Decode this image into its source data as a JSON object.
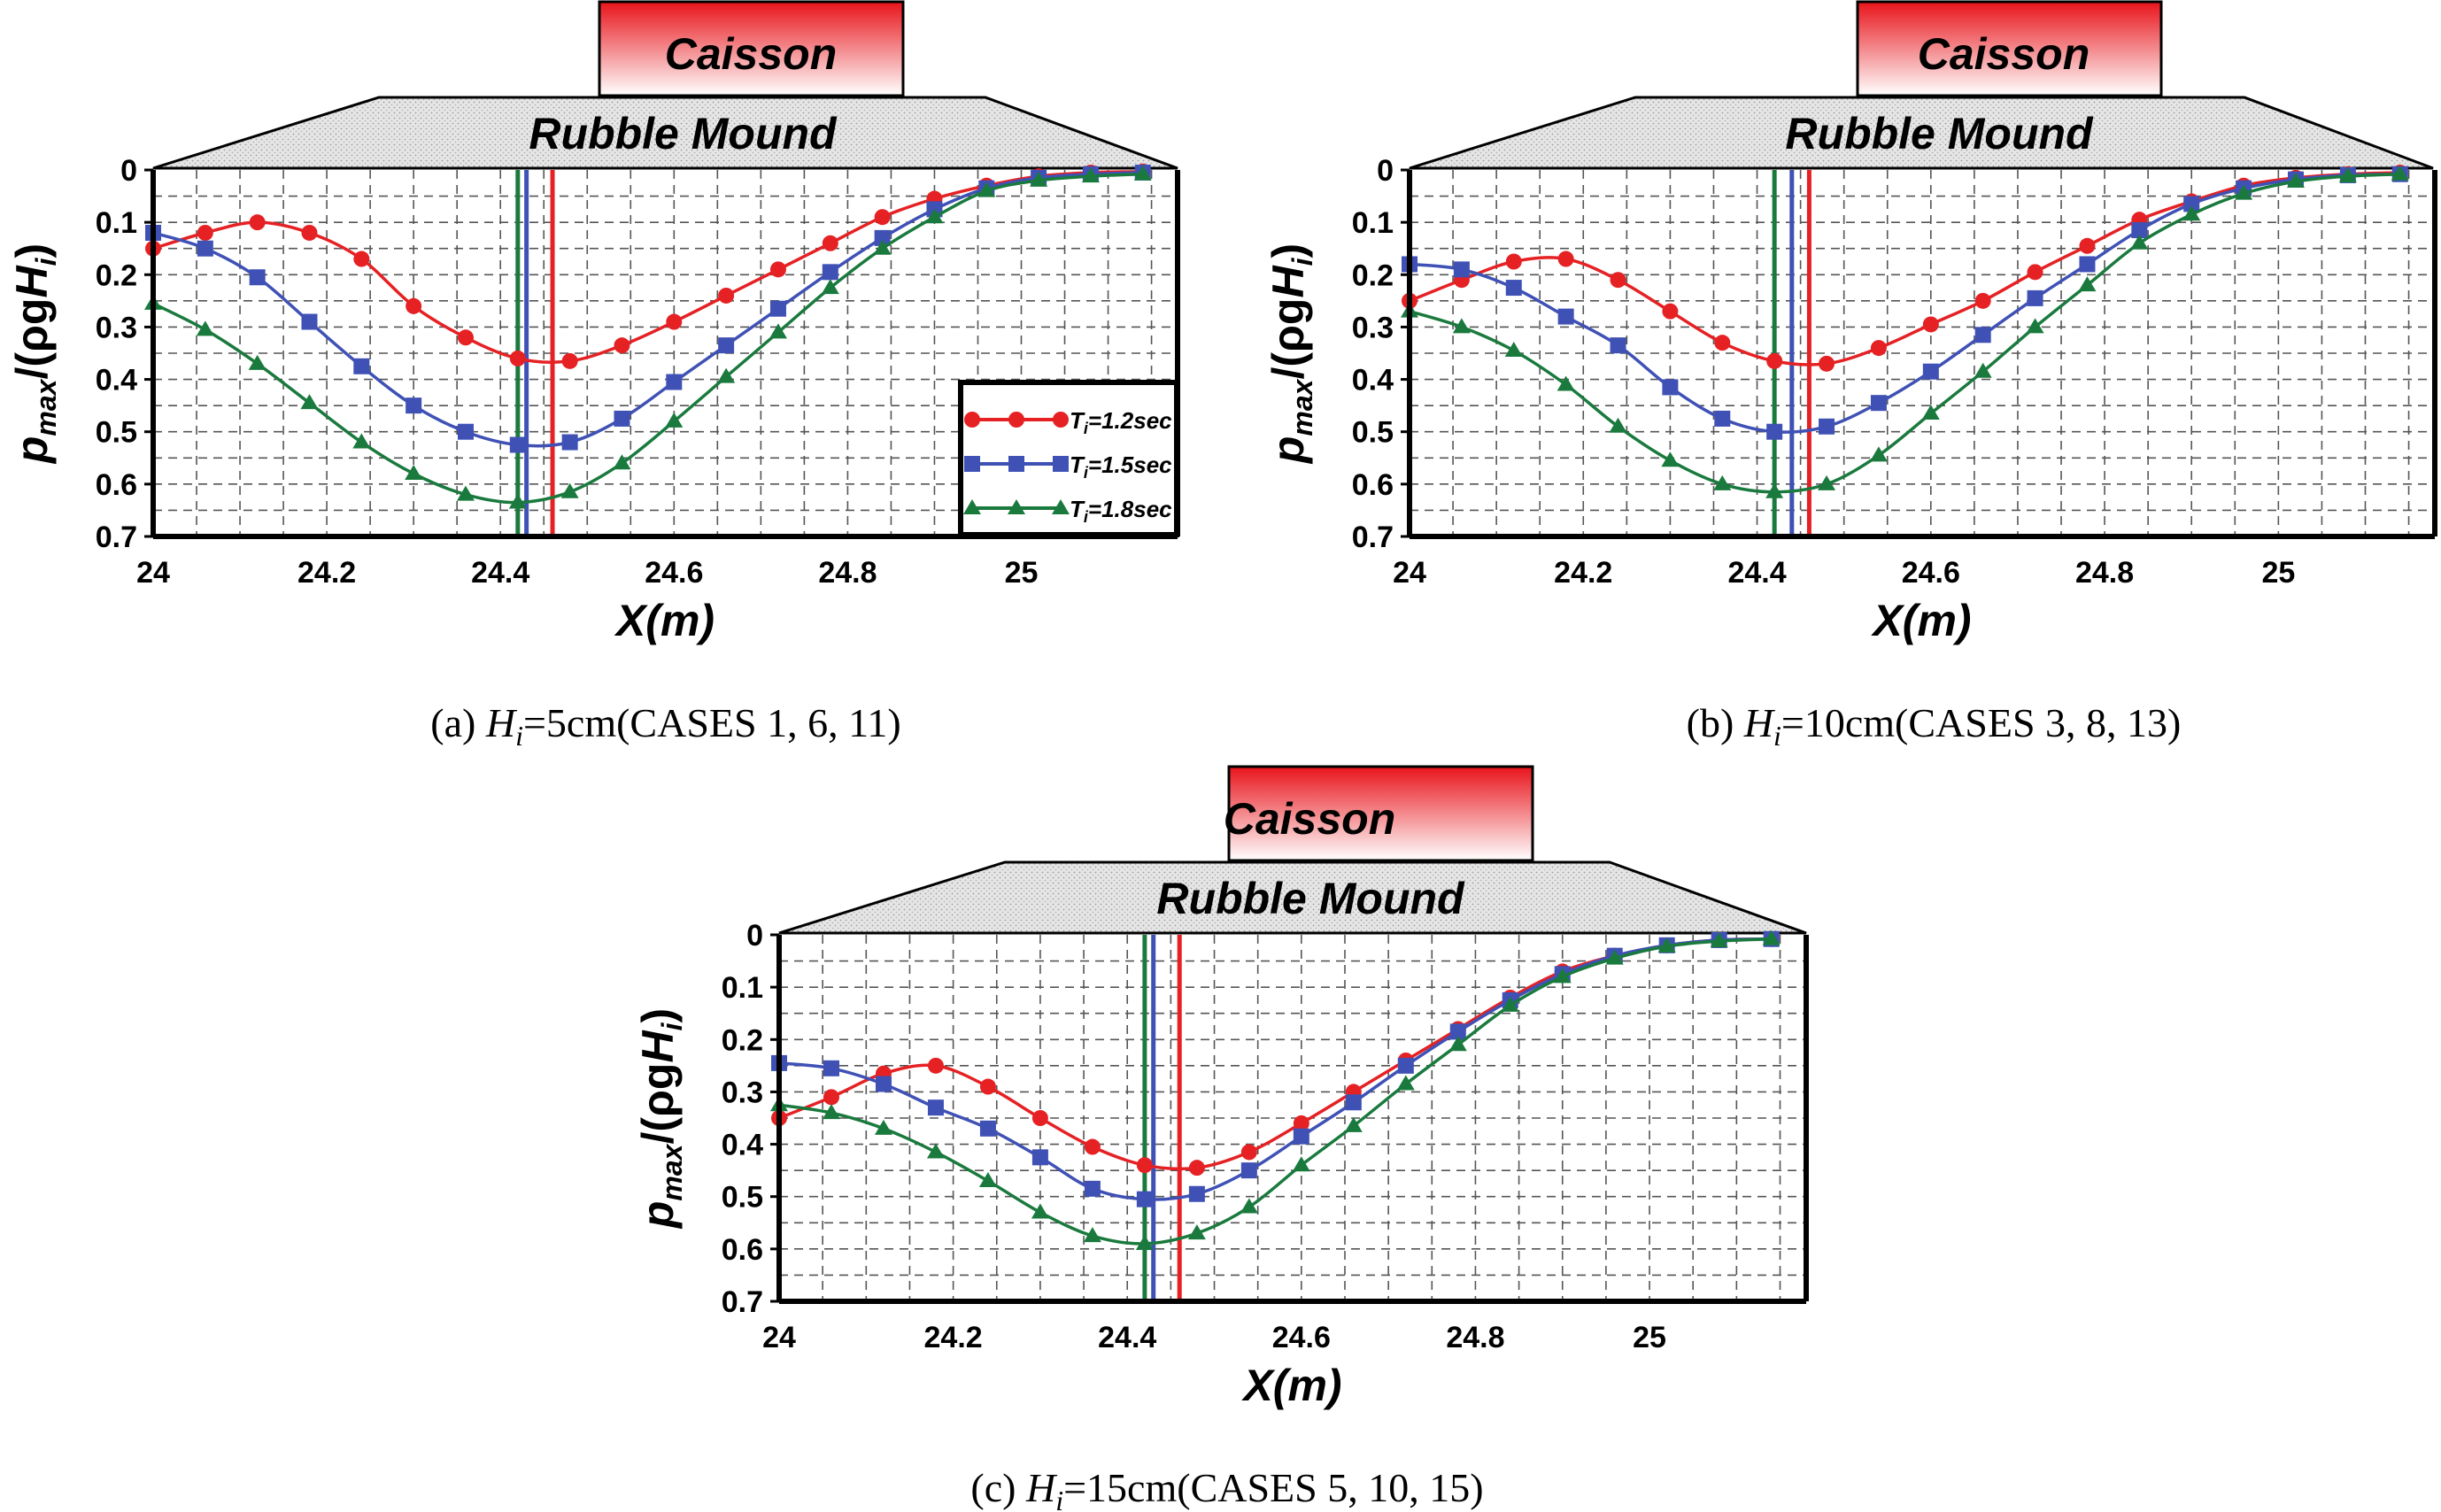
{
  "figure": {
    "colors": {
      "t12": "#e52124",
      "t15": "#3f51b5",
      "t18": "#1a7a3e",
      "caisson_top": "#e8141b",
      "caisson_bottom": "#ffffff",
      "grid": "#555555",
      "frame": "#000000"
    },
    "caisson_label": "Caisson",
    "mound_label": "Rubble Mound",
    "y_label": "p_max/(ρgH_i)",
    "x_label": "X(m)",
    "legend": [
      {
        "key": "t12",
        "prefix": "T",
        "sub": "i",
        "suffix": "=1.2sec",
        "marker": "circle"
      },
      {
        "key": "t15",
        "prefix": "T",
        "sub": "i",
        "suffix": "=1.5sec",
        "marker": "square"
      },
      {
        "key": "t18",
        "prefix": "T",
        "sub": "i",
        "suffix": "=1.8sec",
        "marker": "triangle"
      }
    ]
  },
  "chart_data": [
    {
      "type": "line",
      "caption": {
        "prefix": "(a) ",
        "var": "H",
        "sub": "i",
        "suffix": "=5cm(CASES 1, 6, 11)"
      },
      "xlim": [
        24,
        25.18
      ],
      "ylim": [
        0,
        0.7
      ],
      "y_inverted": true,
      "x_ticks": [
        24,
        24.2,
        24.4,
        24.6,
        24.8,
        25
      ],
      "x_tick_labels": [
        "24",
        "24.2",
        "24.4",
        "24.6",
        "24.8",
        "25"
      ],
      "y_ticks": [
        0,
        0.1,
        0.2,
        0.3,
        0.4,
        0.5,
        0.6,
        0.7
      ],
      "y_tick_labels": [
        "0",
        "0.1",
        "0.2",
        "0.3",
        "0.4",
        "0.5",
        "0.6",
        "0.7"
      ],
      "x": [
        24.0,
        24.06,
        24.12,
        24.18,
        24.24,
        24.3,
        24.36,
        24.42,
        24.48,
        24.54,
        24.6,
        24.66,
        24.72,
        24.78,
        24.84,
        24.9,
        24.96,
        25.02,
        25.08,
        25.14
      ],
      "show_legend": true,
      "series": [
        {
          "name": "Ti=1.2sec",
          "key": "t12",
          "marker": "circle",
          "vline": 24.46,
          "values": [
            0.15,
            0.12,
            0.1,
            0.12,
            0.17,
            0.26,
            0.32,
            0.36,
            0.365,
            0.335,
            0.29,
            0.24,
            0.19,
            0.14,
            0.09,
            0.055,
            0.03,
            0.012,
            0.005,
            0.003
          ]
        },
        {
          "name": "Ti=1.5sec",
          "key": "t15",
          "marker": "square",
          "vline": 24.43,
          "values": [
            0.12,
            0.15,
            0.205,
            0.29,
            0.375,
            0.45,
            0.5,
            0.525,
            0.52,
            0.475,
            0.405,
            0.335,
            0.265,
            0.195,
            0.13,
            0.075,
            0.035,
            0.015,
            0.008,
            0.005
          ]
        },
        {
          "name": "Ti=1.8sec",
          "key": "t18",
          "marker": "triangle",
          "vline": 24.42,
          "values": [
            0.255,
            0.305,
            0.37,
            0.445,
            0.52,
            0.58,
            0.62,
            0.635,
            0.615,
            0.56,
            0.48,
            0.395,
            0.31,
            0.225,
            0.15,
            0.09,
            0.04,
            0.02,
            0.012,
            0.008
          ]
        }
      ]
    },
    {
      "type": "line",
      "caption": {
        "prefix": "(b) ",
        "var": "H",
        "sub": "i",
        "suffix": "=10cm(CASES 3, 8, 13)"
      },
      "xlim": [
        24,
        25.18
      ],
      "ylim": [
        0,
        0.7
      ],
      "y_inverted": true,
      "x_ticks": [
        24,
        24.2,
        24.4,
        24.6,
        24.8,
        25
      ],
      "x_tick_labels": [
        "24",
        "24.2",
        "24.4",
        "24.6",
        "24.8",
        "25"
      ],
      "y_ticks": [
        0,
        0.1,
        0.2,
        0.3,
        0.4,
        0.5,
        0.6,
        0.7
      ],
      "y_tick_labels": [
        "0",
        "0.1",
        "0.2",
        "0.3",
        "0.4",
        "0.5",
        "0.6",
        "0.7"
      ],
      "x": [
        24.0,
        24.06,
        24.12,
        24.18,
        24.24,
        24.3,
        24.36,
        24.42,
        24.48,
        24.54,
        24.6,
        24.66,
        24.72,
        24.78,
        24.84,
        24.9,
        24.96,
        25.02,
        25.08,
        25.14
      ],
      "show_legend": false,
      "series": [
        {
          "name": "Ti=1.2sec",
          "key": "t12",
          "marker": "circle",
          "vline": 24.46,
          "values": [
            0.25,
            0.21,
            0.175,
            0.17,
            0.21,
            0.27,
            0.33,
            0.365,
            0.37,
            0.34,
            0.295,
            0.25,
            0.195,
            0.145,
            0.095,
            0.06,
            0.03,
            0.015,
            0.008,
            0.005
          ]
        },
        {
          "name": "Ti=1.5sec",
          "key": "t15",
          "marker": "square",
          "vline": 24.44,
          "values": [
            0.18,
            0.19,
            0.225,
            0.28,
            0.335,
            0.415,
            0.475,
            0.5,
            0.49,
            0.445,
            0.385,
            0.315,
            0.245,
            0.18,
            0.115,
            0.065,
            0.035,
            0.018,
            0.01,
            0.008
          ]
        },
        {
          "name": "Ti=1.8sec",
          "key": "t18",
          "marker": "triangle",
          "vline": 24.42,
          "values": [
            0.27,
            0.3,
            0.345,
            0.41,
            0.49,
            0.555,
            0.6,
            0.615,
            0.6,
            0.545,
            0.465,
            0.385,
            0.3,
            0.22,
            0.14,
            0.085,
            0.045,
            0.022,
            0.012,
            0.008
          ]
        }
      ]
    },
    {
      "type": "line",
      "caption": {
        "prefix": "(c) ",
        "var": "H",
        "sub": "i",
        "suffix": "=15cm(CASES 5, 10, 15)"
      },
      "xlim": [
        24,
        25.18
      ],
      "ylim": [
        0,
        0.7
      ],
      "y_inverted": true,
      "x_ticks": [
        24,
        24.2,
        24.4,
        24.6,
        24.8,
        25
      ],
      "x_tick_labels": [
        "24",
        "24.2",
        "24.4",
        "24.6",
        "24.8",
        "25"
      ],
      "y_ticks": [
        0,
        0.1,
        0.2,
        0.3,
        0.4,
        0.5,
        0.6,
        0.7
      ],
      "y_tick_labels": [
        "0",
        "0.1",
        "0.2",
        "0.3",
        "0.4",
        "0.5",
        "0.6",
        "0.7"
      ],
      "x": [
        24.0,
        24.06,
        24.12,
        24.18,
        24.24,
        24.3,
        24.36,
        24.42,
        24.48,
        24.54,
        24.6,
        24.66,
        24.72,
        24.78,
        24.84,
        24.9,
        24.96,
        25.02,
        25.08,
        25.14
      ],
      "show_legend": false,
      "series": [
        {
          "name": "Ti=1.2sec",
          "key": "t12",
          "marker": "circle",
          "vline": 24.46,
          "values": [
            0.35,
            0.31,
            0.265,
            0.25,
            0.29,
            0.35,
            0.405,
            0.44,
            0.445,
            0.415,
            0.36,
            0.3,
            0.24,
            0.18,
            0.12,
            0.07,
            0.04,
            0.02,
            0.01,
            0.008
          ]
        },
        {
          "name": "Ti=1.5sec",
          "key": "t15",
          "marker": "square",
          "vline": 24.43,
          "values": [
            0.245,
            0.255,
            0.285,
            0.33,
            0.37,
            0.425,
            0.485,
            0.505,
            0.495,
            0.45,
            0.385,
            0.32,
            0.25,
            0.185,
            0.125,
            0.075,
            0.04,
            0.02,
            0.01,
            0.008
          ]
        },
        {
          "name": "Ti=1.8sec",
          "key": "t18",
          "marker": "triangle",
          "vline": 24.42,
          "values": [
            0.325,
            0.34,
            0.37,
            0.415,
            0.47,
            0.53,
            0.575,
            0.59,
            0.57,
            0.52,
            0.44,
            0.365,
            0.285,
            0.21,
            0.135,
            0.08,
            0.045,
            0.022,
            0.012,
            0.008
          ]
        }
      ]
    }
  ]
}
